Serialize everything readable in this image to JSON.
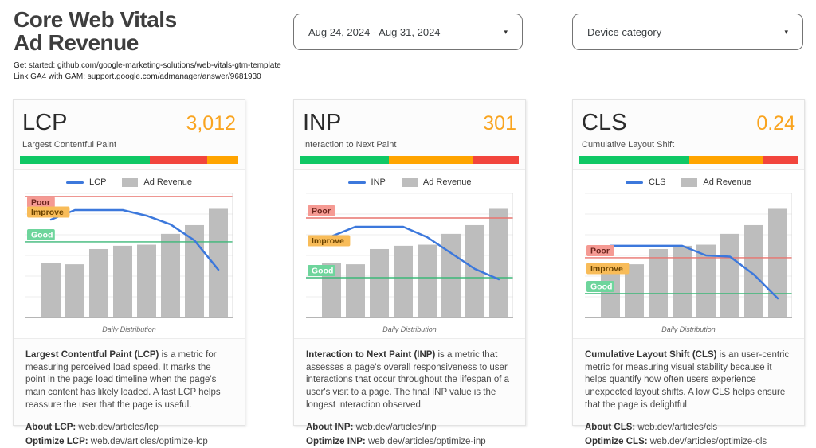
{
  "header": {
    "title_line1": "Core Web Vitals",
    "title_line2": "Ad Revenue",
    "subtitle_line1": "Get started: github.com/google-marketing-solutions/web-vitals-gtm-template",
    "subtitle_line2": "Link GA4 with GAM: support.google.com/admanager/answer/9681930"
  },
  "filters": {
    "date_range": {
      "value": "Aug 24, 2024 - Aug 31, 2024"
    },
    "device_category": {
      "value": "Device category"
    }
  },
  "icons": {
    "caret": "▾"
  },
  "colors": {
    "accent_value": "#F9A41F",
    "good": "#0FC865",
    "needs_improvement": "#FFA400",
    "poor": "#F2453D",
    "line_blue": "#3C78DC",
    "bar_gray": "#BDBDBD",
    "poor_threshold_line": "#E9746E",
    "good_threshold_line": "#3CB878",
    "chip_poor_bg": "#F59A93",
    "chip_poor_text": "#6B241C",
    "chip_improve_bg": "#F8BC59",
    "chip_improve_text": "#6B4300",
    "chip_good_bg": "#6ED59C",
    "chip_good_text": "#FFFFFF",
    "gridline": "#ECECEC",
    "axis": "#B5B5B5"
  },
  "cards": [
    {
      "title": "LCP",
      "value": "3,012",
      "subtitle": "Largest Contentful Paint",
      "distribution": [
        {
          "label": "good",
          "pct": 59.6
        },
        {
          "label": "poor",
          "pct": 26.0
        },
        {
          "label": "improve",
          "pct": 14.4
        }
      ],
      "desc_bold": "Largest Contentful Paint (LCP)",
      "desc_rest": " is a metric for measuring perceived load speed. It marks the point in the page load timeline when the page's main content has likely loaded. A fast LCP helps reassure the user that the page is useful.",
      "about_bold": "About LCP:",
      "about_rest": " web.dev/articles/lcp",
      "optimize_bold": "Optimize LCP:",
      "optimize_rest": " web.dev/articles/optimize-lcp"
    },
    {
      "title": "INP",
      "value": "301",
      "subtitle": "Interaction to Next Paint",
      "distribution": [
        {
          "label": "good",
          "pct": 40.5
        },
        {
          "label": "improve",
          "pct": 38.2
        },
        {
          "label": "poor",
          "pct": 21.3
        }
      ],
      "desc_bold": "Interaction to Next Paint (INP)",
      "desc_rest": " is a metric that assesses a page's overall responsiveness to user interactions that occur throughout the lifespan of a user's visit to a page. The final INP value is the longest interaction observed.",
      "about_bold": "About INP:",
      "about_rest": " web.dev/articles/inp",
      "optimize_bold": "Optimize INP:",
      "optimize_rest": " web.dev/articles/optimize-inp"
    },
    {
      "title": "CLS",
      "value": "0.24",
      "subtitle": "Cumulative Layout Shift",
      "distribution": [
        {
          "label": "good",
          "pct": 50.2
        },
        {
          "label": "improve",
          "pct": 34.1
        },
        {
          "label": "poor",
          "pct": 15.7
        }
      ],
      "desc_bold": "Cumulative Layout Shift (CLS)",
      "desc_rest": " is an user-centric metric for measuring visual stability because it helps quantify how often users experience unexpected layout shifts. A low CLS helps ensure that the page is delightful.",
      "about_bold": "About CLS:",
      "about_rest": " web.dev/articles/cls",
      "optimize_bold": "Optimize CLS:",
      "optimize_rest": " web.dev/articles/optimize-cls"
    }
  ],
  "chart_data": [
    {
      "type": "bar+line",
      "title": "Daily Distribution",
      "x": [
        1,
        2,
        3,
        4,
        5,
        6,
        7,
        8
      ],
      "line": {
        "name": "LCP",
        "unit": "ms",
        "values": [
          3235,
          3550,
          3550,
          3550,
          3365,
          3075,
          2550,
          1580
        ]
      },
      "bars": {
        "name": "Ad Revenue",
        "unit": "relative",
        "values": [
          50,
          49,
          63,
          66,
          67,
          77,
          85,
          100
        ]
      },
      "thresholds": {
        "good": 2500,
        "poor": 4000
      },
      "threshold_labels": {
        "poor": "Poor",
        "improve": "Improve",
        "good": "Good"
      },
      "ylim": [
        0,
        4130
      ],
      "bar_axis_max": 115,
      "grid": true,
      "legend_position": "top"
    },
    {
      "type": "bar+line",
      "title": "Daily Distribution",
      "x": [
        1,
        2,
        3,
        4,
        5,
        6,
        7,
        8
      ],
      "line": {
        "name": "INP",
        "unit": "ms",
        "values": [
          408,
          456,
          456,
          456,
          404,
          324,
          244,
          192
        ]
      },
      "bars": {
        "name": "Ad Revenue",
        "unit": "relative",
        "values": [
          50,
          49,
          63,
          66,
          67,
          77,
          85,
          100
        ]
      },
      "thresholds": {
        "good": 200,
        "poor": 500
      },
      "threshold_labels": {
        "poor": "Poor",
        "improve": "Improve",
        "good": "Good"
      },
      "ylim": [
        0,
        628
      ],
      "bar_axis_max": 115,
      "grid": true,
      "legend_position": "top"
    },
    {
      "type": "bar+line",
      "title": "Daily Distribution",
      "x": [
        1,
        2,
        3,
        4,
        5,
        6,
        7,
        8
      ],
      "line": {
        "name": "CLS",
        "unit": "score",
        "values": [
          0.3,
          0.3,
          0.3,
          0.3,
          0.26,
          0.255,
          0.18,
          0.08
        ]
      },
      "bars": {
        "name": "Ad Revenue",
        "unit": "relative",
        "values": [
          50,
          49,
          63,
          66,
          67,
          77,
          85,
          100
        ]
      },
      "thresholds": {
        "good": 0.1,
        "poor": 0.25
      },
      "threshold_labels": {
        "poor": "Poor",
        "improve": "Improve",
        "good": "Good"
      },
      "ylim": [
        0,
        0.523
      ],
      "bar_axis_max": 115,
      "grid": true,
      "legend_position": "top"
    }
  ]
}
